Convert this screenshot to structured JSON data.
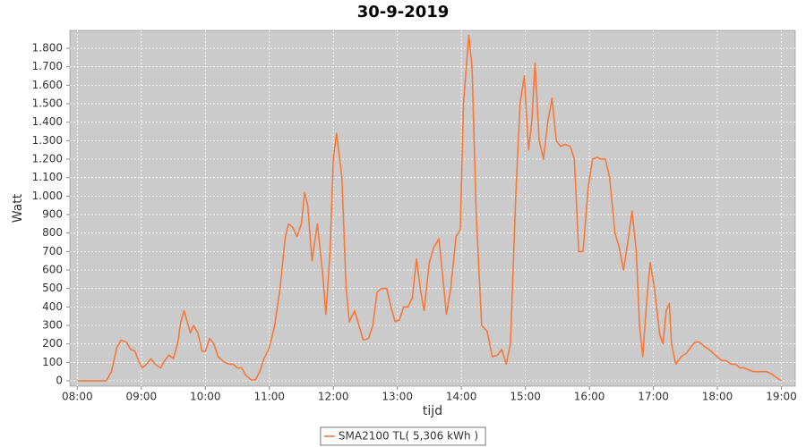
{
  "chart_data": {
    "type": "line",
    "title": "30-9-2019",
    "x_label": "tijd",
    "y_label": "Watt",
    "x": [
      "08:00",
      "08:27",
      "08:32",
      "08:37",
      "08:41",
      "08:46",
      "08:50",
      "08:54",
      "08:58",
      "09:01",
      "09:05",
      "09:09",
      "09:13",
      "09:18",
      "09:22",
      "09:26",
      "09:30",
      "09:34",
      "09:37",
      "09:40",
      "09:44",
      "09:46",
      "09:49",
      "09:53",
      "09:57",
      "10:00",
      "10:04",
      "10:08",
      "10:12",
      "10:18",
      "10:22",
      "10:26",
      "10:30",
      "10:34",
      "10:38",
      "10:43",
      "10:47",
      "10:51",
      "10:55",
      "11:00",
      "11:05",
      "11:10",
      "11:15",
      "11:18",
      "11:22",
      "11:26",
      "11:30",
      "11:33",
      "11:36",
      "11:40",
      "11:45",
      "11:50",
      "11:53",
      "11:57",
      "12:00",
      "12:03",
      "12:08",
      "12:12",
      "12:15",
      "12:20",
      "12:24",
      "12:28",
      "12:33",
      "12:37",
      "12:41",
      "12:45",
      "12:50",
      "12:54",
      "12:58",
      "13:02",
      "13:06",
      "13:10",
      "13:14",
      "13:18",
      "13:22",
      "13:25",
      "13:30",
      "13:34",
      "13:39",
      "13:42",
      "13:46",
      "13:50",
      "13:55",
      "13:59",
      "14:02",
      "14:07",
      "14:10",
      "14:14",
      "14:19",
      "14:24",
      "14:29",
      "14:34",
      "14:38",
      "14:42",
      "14:46",
      "14:51",
      "14:55",
      "14:59",
      "15:03",
      "15:06",
      "15:09",
      "15:13",
      "15:17",
      "15:21",
      "15:25",
      "15:29",
      "15:33",
      "15:37",
      "15:42",
      "15:46",
      "15:50",
      "15:54",
      "15:59",
      "16:03",
      "16:07",
      "16:11",
      "16:15",
      "16:19",
      "16:24",
      "16:28",
      "16:32",
      "16:36",
      "16:40",
      "16:44",
      "16:47",
      "16:50",
      "16:54",
      "16:57",
      "17:01",
      "17:06",
      "17:09",
      "17:12",
      "17:15",
      "17:17",
      "17:21",
      "17:26",
      "17:31",
      "17:35",
      "17:39",
      "17:43",
      "17:47",
      "17:52",
      "17:56",
      "18:00",
      "18:04",
      "18:08",
      "18:13",
      "18:17",
      "18:21",
      "18:25",
      "18:29",
      "18:34",
      "18:38",
      "18:42",
      "18:46",
      "18:50",
      "18:55",
      "19:00"
    ],
    "series": [
      {
        "name": "SMA2100 TL( 5,306 kWh )",
        "color": "#f7793a",
        "values": [
          0,
          0,
          50,
          180,
          220,
          210,
          170,
          160,
          100,
          70,
          90,
          120,
          90,
          70,
          110,
          140,
          120,
          200,
          320,
          380,
          300,
          260,
          300,
          260,
          160,
          160,
          230,
          200,
          130,
          100,
          90,
          90,
          70,
          70,
          30,
          5,
          5,
          50,
          120,
          180,
          300,
          500,
          780,
          850,
          830,
          780,
          850,
          1020,
          950,
          650,
          850,
          580,
          360,
          700,
          1200,
          1340,
          1100,
          500,
          320,
          380,
          300,
          220,
          230,
          300,
          480,
          500,
          500,
          400,
          320,
          330,
          400,
          400,
          450,
          660,
          480,
          380,
          640,
          720,
          770,
          600,
          360,
          500,
          780,
          820,
          1500,
          1870,
          1700,
          900,
          300,
          270,
          130,
          140,
          170,
          90,
          200,
          1000,
          1500,
          1650,
          1250,
          1400,
          1720,
          1300,
          1200,
          1400,
          1530,
          1300,
          1270,
          1280,
          1270,
          1200,
          700,
          700,
          1050,
          1200,
          1210,
          1200,
          1200,
          1100,
          800,
          720,
          600,
          750,
          920,
          700,
          300,
          130,
          450,
          640,
          500,
          250,
          200,
          380,
          420,
          200,
          90,
          130,
          150,
          180,
          210,
          210,
          190,
          170,
          150,
          130,
          110,
          110,
          90,
          90,
          70,
          70,
          60,
          50,
          50,
          50,
          50,
          40,
          20,
          0
        ]
      }
    ],
    "xlim": [
      "07:53",
      "19:13"
    ],
    "xticks": [
      "08:00",
      "09:00",
      "10:00",
      "11:00",
      "12:00",
      "13:00",
      "14:00",
      "15:00",
      "16:00",
      "17:00",
      "18:00",
      "19:00"
    ],
    "ylim": [
      -29,
      1897
    ],
    "yticks": [
      0,
      100,
      200,
      300,
      400,
      500,
      600,
      700,
      800,
      900,
      {
        "value": 1000,
        "label": "1.000"
      },
      {
        "value": 1100,
        "label": "1.100"
      },
      {
        "value": 1200,
        "label": "1.200"
      },
      {
        "value": 1300,
        "label": "1.300"
      },
      {
        "value": 1400,
        "label": "1.400"
      },
      {
        "value": 1500,
        "label": "1.500"
      },
      {
        "value": 1600,
        "label": "1.600"
      },
      {
        "value": 1700,
        "label": "1.700"
      },
      {
        "value": 1800,
        "label": "1.800"
      }
    ],
    "grid": true,
    "legend": "bottom"
  }
}
